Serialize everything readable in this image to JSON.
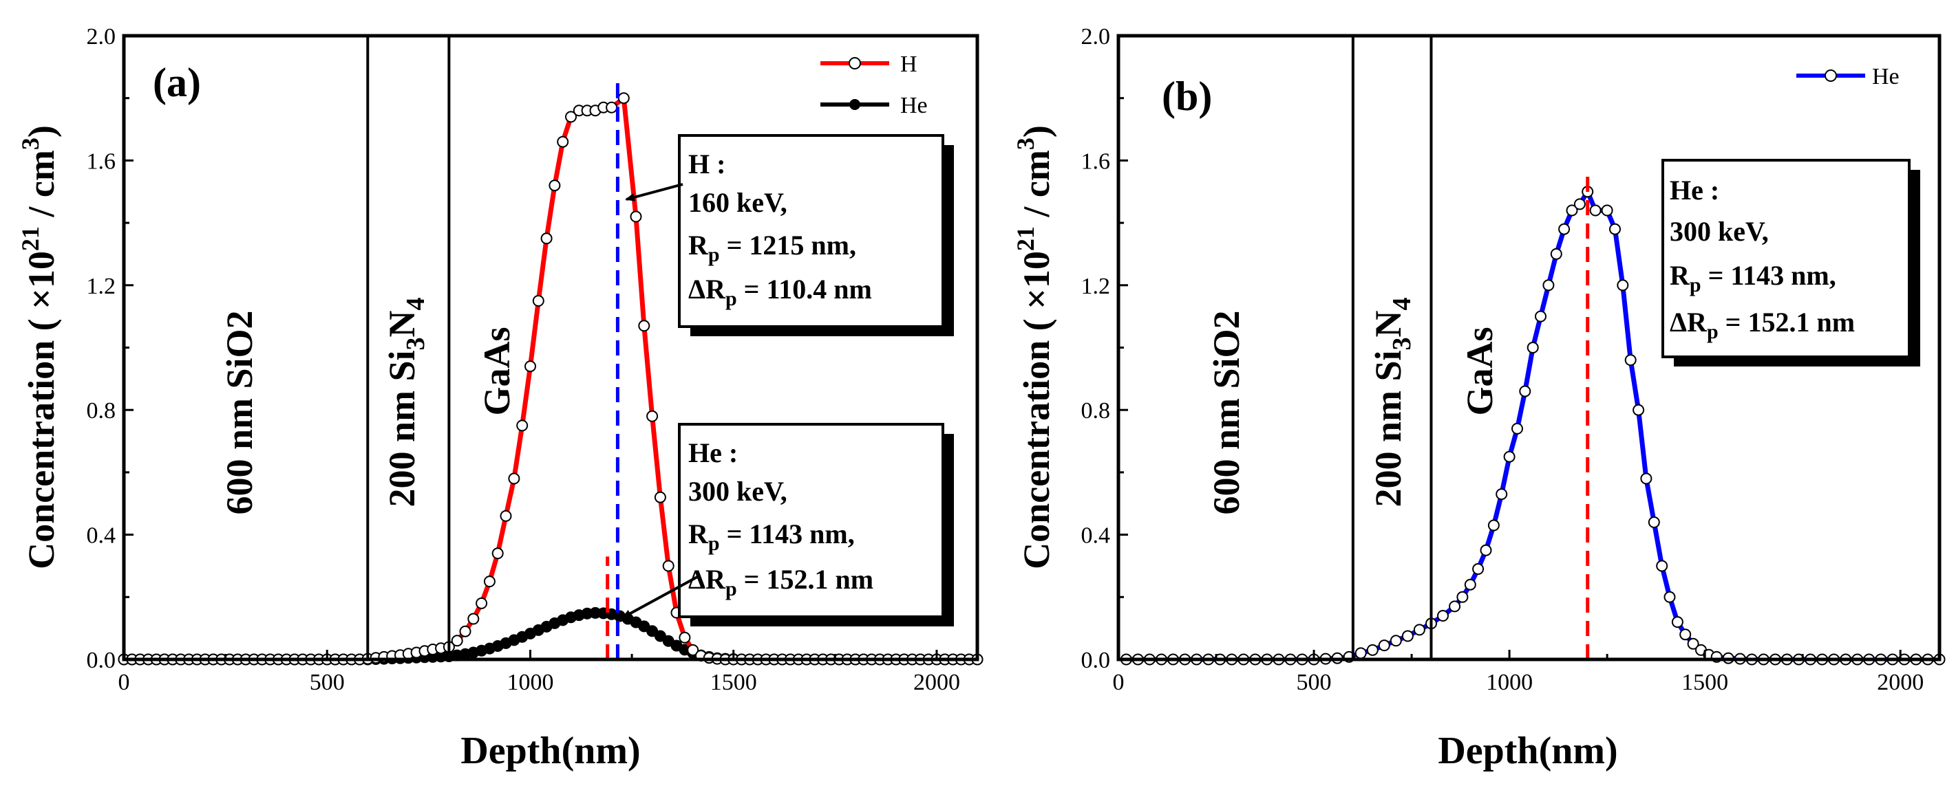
{
  "chart_data": [
    {
      "panel_label": "(a)",
      "type": "line",
      "xlabel": "Depth(nm)",
      "ylabel": {
        "pre": "Concentration ( ×10",
        "sup": "21",
        "mid": " / cm",
        "sup2": "3",
        "post": ")"
      },
      "xlim": [
        0,
        2100
      ],
      "ylim": [
        0,
        2.0
      ],
      "xticks": [
        "0",
        "500",
        "1000",
        "1500",
        "2000"
      ],
      "xtick_values": [
        0,
        500,
        1000,
        1500,
        2000
      ],
      "yticks": [
        "0.0",
        "0.4",
        "0.8",
        "1.2",
        "1.6",
        "2.0"
      ],
      "ytick_values": [
        0,
        0.4,
        0.8,
        1.2,
        1.6,
        2.0
      ],
      "layer_boundaries": [
        600,
        800
      ],
      "layer_labels": {
        "l1": "600 nm SiO2",
        "l2_pre": "200 nm Si",
        "l2_sub1": "3",
        "l2_mid": "N",
        "l2_sub2": "4",
        "l3": "GaAs"
      },
      "series": [
        {
          "name": "H",
          "color": "#ff0000",
          "marker": "open-circle",
          "x": [
            0,
            20,
            40,
            60,
            80,
            100,
            120,
            140,
            160,
            180,
            200,
            220,
            240,
            260,
            280,
            300,
            320,
            340,
            360,
            380,
            400,
            420,
            440,
            460,
            480,
            500,
            520,
            540,
            560,
            580,
            600,
            620,
            640,
            660,
            680,
            700,
            720,
            740,
            760,
            780,
            800,
            820,
            840,
            860,
            880,
            900,
            920,
            940,
            960,
            980,
            1000,
            1020,
            1040,
            1060,
            1080,
            1100,
            1120,
            1140,
            1160,
            1180,
            1200,
            1230,
            1260,
            1280,
            1300,
            1320,
            1340,
            1360,
            1380,
            1400,
            1420,
            1440,
            1460,
            1480,
            1500,
            1520,
            1540,
            1560,
            1580,
            1600,
            1620,
            1640,
            1660,
            1680,
            1700,
            1720,
            1740,
            1760,
            1780,
            1800,
            1820,
            1840,
            1860,
            1880,
            1900,
            1920,
            1940,
            1960,
            1980,
            2000,
            2020,
            2040,
            2060,
            2080,
            2100
          ],
          "y": [
            0,
            0,
            0,
            0,
            0,
            0,
            0,
            0,
            0,
            0,
            0,
            0,
            0,
            0,
            0,
            0,
            0,
            0,
            0,
            0,
            0,
            0,
            0,
            0,
            0,
            0,
            0,
            0,
            0,
            0,
            0.002,
            0.005,
            0.008,
            0.011,
            0.014,
            0.018,
            0.022,
            0.027,
            0.032,
            0.036,
            0.04,
            0.06,
            0.09,
            0.13,
            0.18,
            0.25,
            0.34,
            0.46,
            0.58,
            0.75,
            0.94,
            1.15,
            1.35,
            1.52,
            1.66,
            1.74,
            1.76,
            1.76,
            1.76,
            1.77,
            1.77,
            1.8,
            1.42,
            1.07,
            0.78,
            0.52,
            0.3,
            0.15,
            0.07,
            0.03,
            0.012,
            0.005,
            0.002,
            0,
            0,
            0,
            0,
            0,
            0,
            0,
            0,
            0,
            0,
            0,
            0,
            0,
            0,
            0,
            0,
            0,
            0,
            0,
            0,
            0,
            0,
            0,
            0,
            0,
            0,
            0,
            0,
            0,
            0,
            0,
            0
          ]
        },
        {
          "name": "He",
          "color": "#000000",
          "marker": "filled-circle",
          "x": [
            0,
            20,
            40,
            60,
            80,
            100,
            120,
            140,
            160,
            180,
            200,
            220,
            240,
            260,
            280,
            300,
            320,
            340,
            360,
            380,
            400,
            420,
            440,
            460,
            480,
            500,
            520,
            540,
            560,
            580,
            600,
            620,
            640,
            660,
            680,
            700,
            720,
            740,
            760,
            780,
            800,
            820,
            840,
            860,
            880,
            900,
            920,
            940,
            960,
            980,
            1000,
            1020,
            1040,
            1060,
            1080,
            1100,
            1120,
            1140,
            1160,
            1180,
            1200,
            1220,
            1240,
            1260,
            1280,
            1300,
            1320,
            1340,
            1360,
            1380,
            1400,
            1420,
            1440,
            1460,
            1480,
            1500,
            1520,
            1540,
            1560,
            1580,
            1600,
            1620,
            1640,
            1660,
            1680,
            1700,
            1720,
            1740,
            1760,
            1780,
            1800,
            1820,
            1840,
            1860,
            1880,
            1900,
            1920,
            1940,
            1960,
            1980,
            2000,
            2020,
            2040,
            2060,
            2080,
            2100
          ],
          "y": [
            0,
            0,
            0,
            0,
            0,
            0,
            0,
            0,
            0,
            0,
            0,
            0,
            0,
            0,
            0,
            0,
            0,
            0,
            0,
            0,
            0,
            0,
            0,
            0,
            0,
            0,
            0,
            0,
            0,
            0,
            0,
            0.001,
            0.002,
            0.003,
            0.004,
            0.005,
            0.006,
            0.007,
            0.008,
            0.009,
            0.01,
            0.013,
            0.017,
            0.022,
            0.028,
            0.035,
            0.043,
            0.052,
            0.062,
            0.072,
            0.083,
            0.094,
            0.105,
            0.116,
            0.126,
            0.135,
            0.142,
            0.147,
            0.149,
            0.148,
            0.145,
            0.139,
            0.13,
            0.119,
            0.106,
            0.091,
            0.075,
            0.059,
            0.044,
            0.031,
            0.021,
            0.013,
            0.008,
            0.004,
            0.002,
            0.001,
            0,
            0,
            0,
            0,
            0,
            0,
            0,
            0,
            0,
            0,
            0,
            0,
            0,
            0,
            0,
            0,
            0,
            0,
            0,
            0,
            0,
            0,
            0,
            0,
            0,
            0,
            0,
            0,
            0,
            0
          ]
        }
      ],
      "vlines": [
        {
          "x": 1215,
          "color": "#0000ff",
          "style": "dashed",
          "y_top": 1.85
        },
        {
          "x": 1190,
          "color": "#ff0000",
          "style": "dashed",
          "y_top": 0.33
        }
      ],
      "legend": [
        "H",
        "He"
      ],
      "annotations": [
        {
          "lines": [
            "H :",
            "160 keV,",
            "R",
            "ΔR"
          ],
          "l3_sub": "p",
          "l3_rest": " = 1215 nm,",
          "l4_sub": "p",
          "l4_rest": " = 110.4 nm"
        },
        {
          "lines": [
            "He :",
            "300 keV,",
            "R",
            "ΔR"
          ],
          "l3_sub": "p",
          "l3_rest": " = 1143 nm,",
          "l4_sub": "p",
          "l4_rest": " = 152.1 nm"
        }
      ]
    },
    {
      "panel_label": "(b)",
      "type": "line",
      "xlabel": "Depth(nm)",
      "ylabel": {
        "pre": "Concentration ( ×10",
        "sup": "21",
        "mid": " / cm",
        "sup2": "3",
        "post": ")"
      },
      "xlim": [
        0,
        2100
      ],
      "ylim": [
        0,
        2.0
      ],
      "xticks": [
        "0",
        "500",
        "1000",
        "1500",
        "2000"
      ],
      "xtick_values": [
        0,
        500,
        1000,
        1500,
        2000
      ],
      "yticks": [
        "0.0",
        "0.4",
        "0.8",
        "1.2",
        "1.6",
        "2.0"
      ],
      "ytick_values": [
        0,
        0.4,
        0.8,
        1.2,
        1.6,
        2.0
      ],
      "layer_boundaries": [
        600,
        800
      ],
      "layer_labels": {
        "l1": "600 nm SiO2",
        "l2_pre": "200 nm Si",
        "l2_sub1": "3",
        "l2_mid": "N",
        "l2_sub2": "4",
        "l3": "GaAs"
      },
      "series": [
        {
          "name": "He",
          "color": "#0000ff",
          "marker": "open-circle",
          "x": [
            20,
            50,
            80,
            110,
            140,
            170,
            200,
            230,
            260,
            290,
            320,
            350,
            380,
            410,
            440,
            470,
            500,
            530,
            560,
            590,
            620,
            650,
            680,
            710,
            740,
            770,
            800,
            830,
            860,
            880,
            900,
            920,
            940,
            960,
            980,
            1000,
            1020,
            1040,
            1060,
            1080,
            1100,
            1120,
            1140,
            1160,
            1180,
            1200,
            1220,
            1250,
            1270,
            1290,
            1310,
            1330,
            1350,
            1370,
            1390,
            1410,
            1430,
            1450,
            1470,
            1490,
            1510,
            1530,
            1560,
            1590,
            1620,
            1650,
            1680,
            1710,
            1740,
            1770,
            1800,
            1830,
            1860,
            1890,
            1920,
            1950,
            1980,
            2010,
            2040,
            2070,
            2100
          ],
          "y": [
            0,
            0,
            0,
            0,
            0,
            0,
            0,
            0,
            0,
            0,
            0,
            0,
            0,
            0,
            0,
            0,
            0,
            0.002,
            0.004,
            0.008,
            0.02,
            0.03,
            0.045,
            0.06,
            0.075,
            0.095,
            0.115,
            0.14,
            0.17,
            0.2,
            0.24,
            0.29,
            0.35,
            0.43,
            0.53,
            0.65,
            0.74,
            0.86,
            1.0,
            1.1,
            1.2,
            1.3,
            1.38,
            1.44,
            1.46,
            1.5,
            1.44,
            1.44,
            1.38,
            1.2,
            0.96,
            0.8,
            0.58,
            0.44,
            0.3,
            0.2,
            0.12,
            0.08,
            0.05,
            0.03,
            0.015,
            0.008,
            0.004,
            0.002,
            0,
            0,
            0,
            0,
            0,
            0,
            0,
            0,
            0,
            0,
            0,
            0,
            0,
            0,
            0,
            0,
            0
          ]
        }
      ],
      "vlines": [
        {
          "x": 1200,
          "color": "#ff0000",
          "style": "dashed",
          "y_top": 1.55
        }
      ],
      "legend": [
        "He"
      ],
      "annotations": [
        {
          "lines": [
            "He :",
            "300 keV,",
            "R",
            "ΔR"
          ],
          "l3_sub": "p",
          "l3_rest": " = 1143 nm,",
          "l4_sub": "p",
          "l4_rest": " = 152.1 nm"
        }
      ]
    }
  ]
}
